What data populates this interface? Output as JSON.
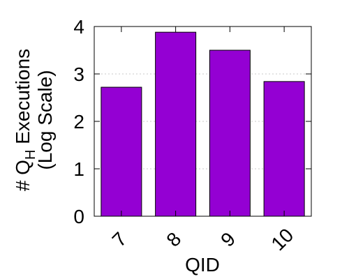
{
  "chart_data": {
    "type": "bar",
    "categories": [
      "7",
      "8",
      "9",
      "10"
    ],
    "values": [
      2.72,
      3.88,
      3.5,
      2.84
    ],
    "xlabel": "QID",
    "ylabel_line1_prefix": "# Q",
    "ylabel_line1_subscript": "H",
    "ylabel_line1_suffix": " Executions",
    "ylabel_line2": "(Log Scale)",
    "ylim": [
      0,
      4
    ],
    "yticks": [
      "0",
      "1",
      "2",
      "3",
      "4"
    ],
    "grid": true,
    "bar_color": "#9400D3"
  }
}
